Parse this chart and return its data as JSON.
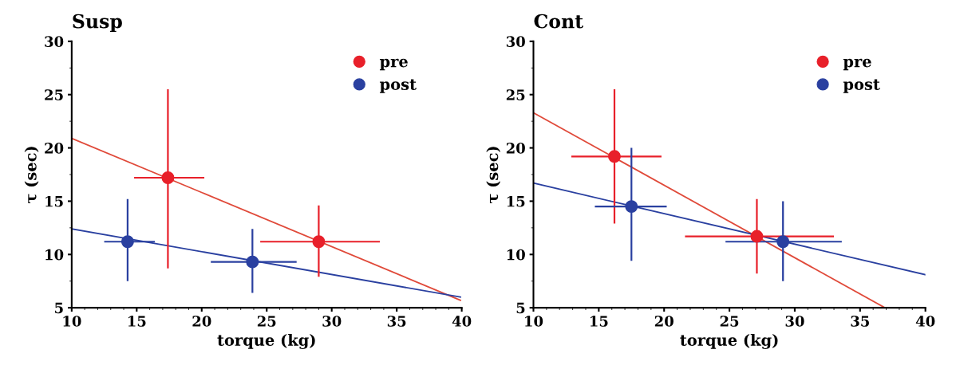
{
  "chart_data": [
    {
      "type": "scatter",
      "title": "Susp",
      "xlabel": "torque (kg)",
      "ylabel": "τ (sec)",
      "xlim": [
        10,
        40
      ],
      "xticks": [
        10,
        15,
        20,
        25,
        30,
        35,
        40
      ],
      "ylim": [
        5,
        30
      ],
      "yticks": [
        5,
        10,
        15,
        20,
        25,
        30
      ],
      "legend": "top right",
      "grid": false,
      "series": [
        {
          "name": "pre",
          "color": "#e8202a",
          "marker": "circle",
          "x": [
            17.4,
            29.0
          ],
          "values": [
            17.2,
            11.2
          ],
          "errors": [
            [
              8.7,
              25.5
            ],
            [
              7.9,
              14.6
            ]
          ],
          "xerrors": [
            [
              14.8,
              20.2
            ],
            [
              24.5,
              33.7
            ]
          ]
        },
        {
          "name": "post",
          "color": "#2a40a0",
          "marker": "circle",
          "x": [
            14.3,
            23.9
          ],
          "values": [
            11.2,
            9.3
          ],
          "errors": [
            [
              7.5,
              15.2
            ],
            [
              6.4,
              12.4
            ]
          ],
          "xerrors": [
            [
              12.5,
              16.4
            ],
            [
              20.7,
              27.3
            ]
          ]
        },
        {
          "type": "line",
          "color": "#e04a3a",
          "x": [
            10,
            39.9
          ],
          "values": [
            20.9,
            5.7
          ],
          "line_style": "solid"
        },
        {
          "type": "line",
          "color": "#2a40a0",
          "x": [
            10,
            39.9
          ],
          "values": [
            12.4,
            6.0
          ],
          "line_style": "solid"
        }
      ]
    },
    {
      "type": "scatter",
      "title": "Cont",
      "xlabel": "torque (kg)",
      "ylabel": "τ (sec)",
      "xlim": [
        10,
        40
      ],
      "xticks": [
        10,
        15,
        20,
        25,
        30,
        35,
        40
      ],
      "ylim": [
        5,
        30
      ],
      "yticks": [
        5,
        10,
        15,
        20,
        25,
        30
      ],
      "legend": "top right",
      "grid": false,
      "series": [
        {
          "name": "pre",
          "color": "#e8202a",
          "marker": "circle",
          "x": [
            16.2,
            27.1
          ],
          "values": [
            19.2,
            11.7
          ],
          "errors": [
            [
              12.9,
              25.5
            ],
            [
              8.2,
              15.2
            ]
          ],
          "xerrors": [
            [
              12.9,
              19.8
            ],
            [
              21.6,
              33.0
            ]
          ]
        },
        {
          "name": "post",
          "color": "#2a40a0",
          "marker": "circle",
          "x": [
            17.5,
            29.1
          ],
          "values": [
            14.5,
            11.2
          ],
          "errors": [
            [
              9.4,
              20.0
            ],
            [
              7.5,
              15.0
            ]
          ],
          "xerrors": [
            [
              14.7,
              20.2
            ],
            [
              24.7,
              33.6
            ]
          ]
        },
        {
          "type": "line",
          "color": "#e04a3a",
          "x": [
            10,
            36.9
          ],
          "values": [
            23.3,
            5.0
          ],
          "line_style": "solid"
        },
        {
          "type": "line",
          "color": "#2a40a0",
          "x": [
            10,
            40
          ],
          "values": [
            16.7,
            8.1
          ],
          "line_style": "solid"
        }
      ]
    }
  ]
}
